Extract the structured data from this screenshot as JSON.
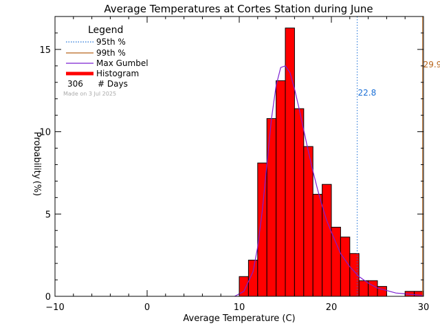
{
  "chart_data": {
    "type": "bar",
    "title": "Average Temperatures at Cortes Station during June",
    "xlabel": "Average Temperature (C)",
    "ylabel_line1": "Probability",
    "ylabel_line2": "(%)",
    "xlim": [
      -10,
      30
    ],
    "ylim": [
      0,
      17
    ],
    "x_ticks": [
      -10,
      0,
      10,
      20,
      30
    ],
    "x_tick_labels": [
      "−10",
      "0",
      "10",
      "20",
      "30"
    ],
    "y_ticks": [
      0,
      5,
      10,
      15
    ],
    "y_tick_labels": [
      "0",
      "5",
      "10",
      "15"
    ],
    "histogram": {
      "bin_width": 1,
      "bins": [
        {
          "x0": 10,
          "value": 1.2
        },
        {
          "x0": 11,
          "value": 2.2
        },
        {
          "x0": 12,
          "value": 8.1
        },
        {
          "x0": 13,
          "value": 10.8
        },
        {
          "x0": 14,
          "value": 13.1
        },
        {
          "x0": 15,
          "value": 16.3
        },
        {
          "x0": 16,
          "value": 11.4
        },
        {
          "x0": 17,
          "value": 9.1
        },
        {
          "x0": 18,
          "value": 6.2
        },
        {
          "x0": 19,
          "value": 6.8
        },
        {
          "x0": 20,
          "value": 4.2
        },
        {
          "x0": 21,
          "value": 3.6
        },
        {
          "x0": 22,
          "value": 2.6
        },
        {
          "x0": 23,
          "value": 0.95
        },
        {
          "x0": 24,
          "value": 0.95
        },
        {
          "x0": 25,
          "value": 0.6
        },
        {
          "x0": 26,
          "value": 0.0
        },
        {
          "x0": 27,
          "value": 0.0
        },
        {
          "x0": 28,
          "value": 0.3
        },
        {
          "x0": 29,
          "value": 0.3
        }
      ]
    },
    "gumbel_curve": {
      "x": [
        9.5,
        10.5,
        11.5,
        12,
        12.5,
        13,
        13.5,
        14,
        14.5,
        15,
        15.5,
        16,
        16.5,
        17,
        17.5,
        18,
        18.5,
        19,
        19.5,
        20,
        21,
        22,
        23,
        24,
        25,
        26,
        27,
        28,
        29,
        30
      ],
      "y": [
        0.0,
        0.3,
        1.5,
        3.0,
        5.2,
        8.0,
        10.8,
        12.8,
        13.9,
        14.0,
        13.6,
        12.6,
        11.4,
        10.1,
        8.8,
        7.6,
        6.5,
        5.5,
        4.6,
        3.9,
        2.6,
        1.8,
        1.2,
        0.8,
        0.5,
        0.35,
        0.2,
        0.15,
        0.1,
        0.05
      ]
    },
    "percentile_95": {
      "value": 22.8,
      "label": "22.8",
      "color": "#1a6fd6"
    },
    "percentile_99": {
      "value": 29.9,
      "label": "29.9",
      "color": "#b8651b"
    },
    "legend": {
      "title": "Legend",
      "items": [
        {
          "label": "95th %",
          "style": "dotted",
          "color": "#1a6fd6"
        },
        {
          "label": "99th %",
          "style": "solid",
          "color": "#b8651b"
        },
        {
          "label": "Max Gumbel",
          "style": "solid",
          "color": "#7b1fd1"
        },
        {
          "label": "Histogram",
          "style": "thick",
          "color": "#ff0000"
        }
      ],
      "days_count": "306",
      "days_label": "# Days",
      "made_on": "Made on 3 Jul 2025"
    },
    "colors": {
      "histogram_fill": "#ff0000",
      "histogram_edge": "#000000",
      "gumbel": "#7b1fd1",
      "axes": "#000000"
    }
  }
}
